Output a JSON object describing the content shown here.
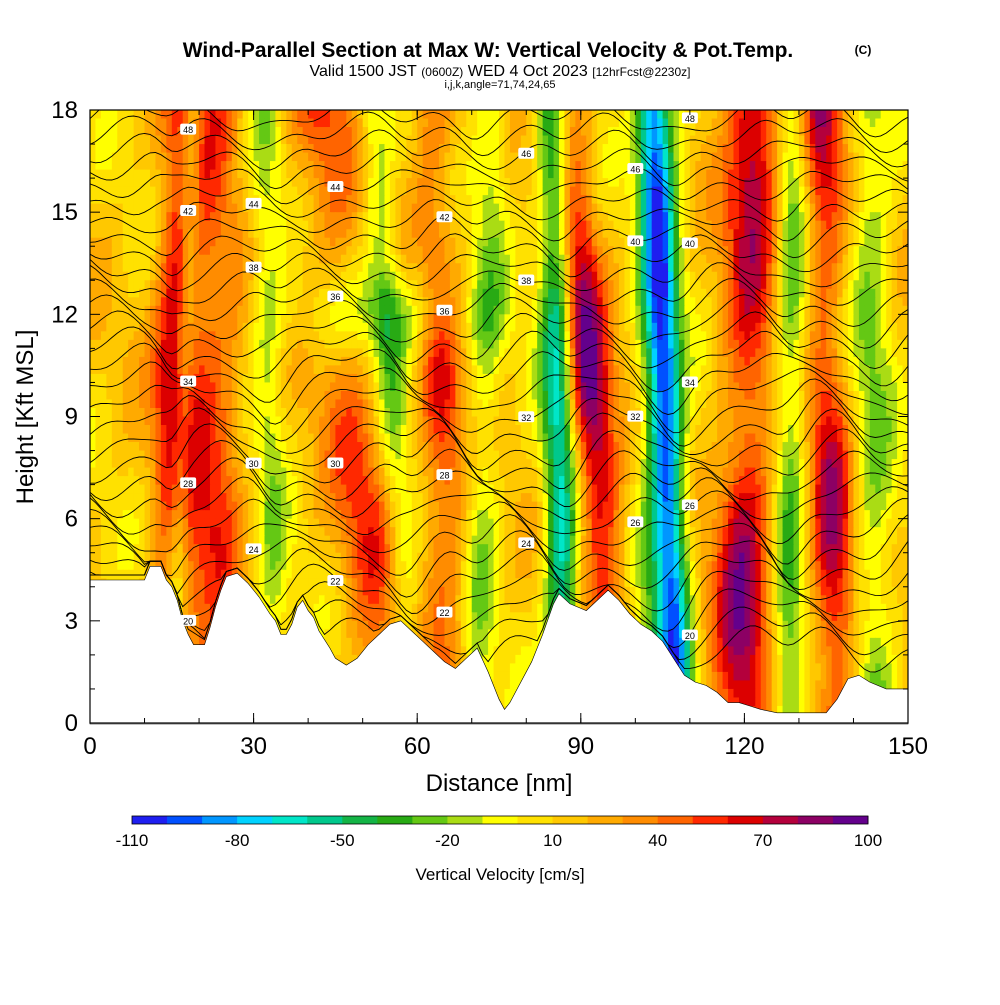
{
  "header": {
    "title_main": "Wind-Parallel Section at Max W: Vertical Velocity & Pot.Temp.",
    "title_unit": "(C)",
    "valid_a": "Valid 1500 JST",
    "valid_b": "(0600Z)",
    "valid_c": "WED 4 Oct 2023",
    "valid_d": "[12hrFcst@2230z]",
    "params": "i,j,k,angle=71,74,24,65"
  },
  "chart_data": {
    "type": "heatmap",
    "xlabel": "Distance [nm]",
    "ylabel": "Height [Kft MSL]",
    "xlim": [
      0,
      150
    ],
    "ylim": [
      0,
      18
    ],
    "x_ticks": [
      "0",
      "30",
      "60",
      "90",
      "120",
      "150"
    ],
    "x_tick_values": [
      0,
      30,
      60,
      90,
      120,
      150
    ],
    "y_ticks": [
      "0",
      "3",
      "6",
      "9",
      "12",
      "15",
      "18"
    ],
    "y_tick_values": [
      0,
      3,
      6,
      9,
      12,
      15,
      18
    ],
    "colorbar": {
      "label": "Vertical Velocity [cm/s]",
      "levels": [
        -110,
        -100,
        -90,
        -80,
        -70,
        -60,
        -50,
        -40,
        -30,
        -20,
        -10,
        0,
        10,
        20,
        30,
        40,
        50,
        60,
        70,
        80,
        90,
        100
      ],
      "tick_labels": [
        "-110",
        "-80",
        "-50",
        "-20",
        "10",
        "40",
        "70",
        "100"
      ],
      "tick_values": [
        -110,
        -80,
        -50,
        -20,
        10,
        40,
        70,
        100
      ],
      "colors": [
        "#1e1ef0",
        "#0050ff",
        "#0096ff",
        "#00d2ff",
        "#00e6c8",
        "#00c88c",
        "#14b446",
        "#28aa14",
        "#64c814",
        "#aadc14",
        "#ffff00",
        "#ffe100",
        "#ffc800",
        "#ffaa00",
        "#ff8c00",
        "#ff6400",
        "#ff2800",
        "#dc0000",
        "#b4003c",
        "#8c0064",
        "#64008c"
      ]
    },
    "terrain_kft": [
      [
        0,
        4.2
      ],
      [
        10,
        4.2
      ],
      [
        11,
        4.6
      ],
      [
        13,
        4.6
      ],
      [
        14,
        4.2
      ],
      [
        15,
        4.0
      ],
      [
        16,
        3.6
      ],
      [
        17,
        3.0
      ],
      [
        18,
        2.6
      ],
      [
        19,
        2.3
      ],
      [
        21,
        2.3
      ],
      [
        22,
        2.8
      ],
      [
        23,
        3.4
      ],
      [
        24,
        3.9
      ],
      [
        25,
        4.3
      ],
      [
        27,
        4.4
      ],
      [
        29,
        4.1
      ],
      [
        31,
        3.7
      ],
      [
        33,
        3.2
      ],
      [
        34,
        3.0
      ],
      [
        35,
        2.6
      ],
      [
        36,
        2.6
      ],
      [
        37,
        2.9
      ],
      [
        38,
        3.4
      ],
      [
        39,
        3.6
      ],
      [
        40,
        3.3
      ],
      [
        41,
        3.1
      ],
      [
        42,
        2.7
      ],
      [
        44,
        2.2
      ],
      [
        45,
        1.9
      ],
      [
        47,
        1.7
      ],
      [
        49,
        1.9
      ],
      [
        51,
        2.3
      ],
      [
        53,
        2.6
      ],
      [
        55,
        2.9
      ],
      [
        57,
        3.0
      ],
      [
        59,
        2.7
      ],
      [
        61,
        2.4
      ],
      [
        63,
        2.1
      ],
      [
        65,
        1.8
      ],
      [
        67,
        1.6
      ],
      [
        69,
        1.9
      ],
      [
        71,
        2.2
      ],
      [
        73,
        1.5
      ],
      [
        75,
        0.7
      ],
      [
        76,
        0.4
      ],
      [
        77,
        0.6
      ],
      [
        79,
        1.2
      ],
      [
        81,
        1.8
      ],
      [
        83,
        2.6
      ],
      [
        85,
        3.5
      ],
      [
        86,
        3.8
      ],
      [
        88,
        3.5
      ],
      [
        91,
        3.3
      ],
      [
        93,
        3.6
      ],
      [
        95,
        3.9
      ],
      [
        97,
        3.6
      ],
      [
        99,
        3.2
      ],
      [
        101,
        2.9
      ],
      [
        103,
        2.7
      ],
      [
        105,
        2.4
      ],
      [
        107,
        1.9
      ],
      [
        109,
        1.4
      ],
      [
        111,
        1.2
      ],
      [
        113,
        1.1
      ],
      [
        115,
        0.9
      ],
      [
        117,
        0.6
      ],
      [
        119,
        0.6
      ],
      [
        121,
        0.5
      ],
      [
        123,
        0.4
      ],
      [
        126,
        0.3
      ],
      [
        131,
        0.3
      ],
      [
        135,
        0.3
      ],
      [
        137,
        0.7
      ],
      [
        139,
        1.3
      ],
      [
        141,
        1.4
      ],
      [
        143,
        1.2
      ],
      [
        146,
        1.0
      ],
      [
        150,
        1.0
      ]
    ],
    "isentropes": [
      {
        "label": "20",
        "base": 2.9,
        "amp": 0.35
      },
      {
        "label": "22",
        "base": 3.7,
        "amp": 0.5
      },
      {
        "label": "24",
        "base": 4.8,
        "amp": 0.6
      },
      {
        "label": "26",
        "base": 5.8,
        "amp": 0.6
      },
      {
        "label": "28",
        "base": 6.7,
        "amp": 0.6
      },
      {
        "label": "30",
        "base": 7.8,
        "amp": 0.5
      },
      {
        "label": "32",
        "base": 9.0,
        "amp": 0.45
      },
      {
        "label": "34",
        "base": 10.2,
        "amp": 0.4
      },
      {
        "label": "36",
        "base": 12.3,
        "amp": 0.45
      },
      {
        "label": "38",
        "base": 12.9,
        "amp": 0.5
      },
      {
        "label": "40",
        "base": 13.8,
        "amp": 0.45
      },
      {
        "label": "42",
        "base": 14.6,
        "amp": 0.45
      },
      {
        "label": "44",
        "base": 15.6,
        "amp": 0.4
      },
      {
        "label": "46",
        "base": 16.5,
        "amp": 0.35
      },
      {
        "label": "48",
        "base": 17.7,
        "amp": 0.3
      }
    ],
    "updraft_bands": [
      {
        "x_bottom": 15,
        "x_top": 17,
        "w": 4,
        "peak": 75
      },
      {
        "x_bottom": 23,
        "x_top": 23,
        "w": 5,
        "peak": 45
      },
      {
        "x_bottom": 55,
        "x_top": 42,
        "w": 6,
        "peak": 40
      },
      {
        "x_bottom": 66,
        "x_top": 63,
        "w": 4,
        "peak": 48
      },
      {
        "x_bottom": 97,
        "x_top": 87,
        "w": 4,
        "peak": 85
      },
      {
        "x_bottom": 119,
        "x_top": 122,
        "w": 5,
        "peak": 72
      },
      {
        "x_bottom": 137,
        "x_top": 134,
        "w": 4,
        "peak": 65
      }
    ],
    "downdraft_bands": [
      {
        "x_bottom": 15,
        "x_top": 19,
        "w": 2,
        "peak": -40
      },
      {
        "x_bottom": 34,
        "x_top": 32,
        "w": 3,
        "peak": -25
      },
      {
        "x_bottom": 59,
        "x_top": 52,
        "w": 3,
        "peak": -30
      },
      {
        "x_bottom": 71,
        "x_top": 74,
        "w": 3,
        "peak": -25
      },
      {
        "x_bottom": 87,
        "x_top": 85,
        "w": 3,
        "peak": -75
      },
      {
        "x_bottom": 104,
        "x_top": 105,
        "w": 4,
        "peak": -35
      },
      {
        "x_bottom": 108,
        "x_top": 103,
        "w": 3,
        "peak": -80
      },
      {
        "x_bottom": 128,
        "x_top": 129,
        "w": 3,
        "peak": -40
      },
      {
        "x_bottom": 144,
        "x_top": 143,
        "w": 4,
        "peak": -30
      }
    ]
  }
}
